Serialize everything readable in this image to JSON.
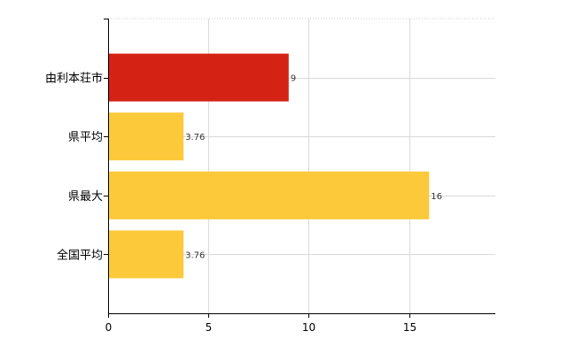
{
  "chart_data": {
    "type": "bar",
    "orientation": "horizontal",
    "categories": [
      "由利本荘市",
      "県平均",
      "県最大",
      "全国平均"
    ],
    "values": [
      9,
      3.76,
      16,
      3.76
    ],
    "data_labels": [
      "9",
      "3.76",
      "16",
      "3.76"
    ],
    "colors": [
      "#d42214",
      "#fbc93a",
      "#fbc93a",
      "#fbc93a"
    ],
    "title": "",
    "xlabel": "",
    "ylabel": "",
    "xlim": [
      0,
      19.3
    ],
    "x_ticks": [
      0,
      5,
      10,
      15
    ],
    "grid": true
  }
}
